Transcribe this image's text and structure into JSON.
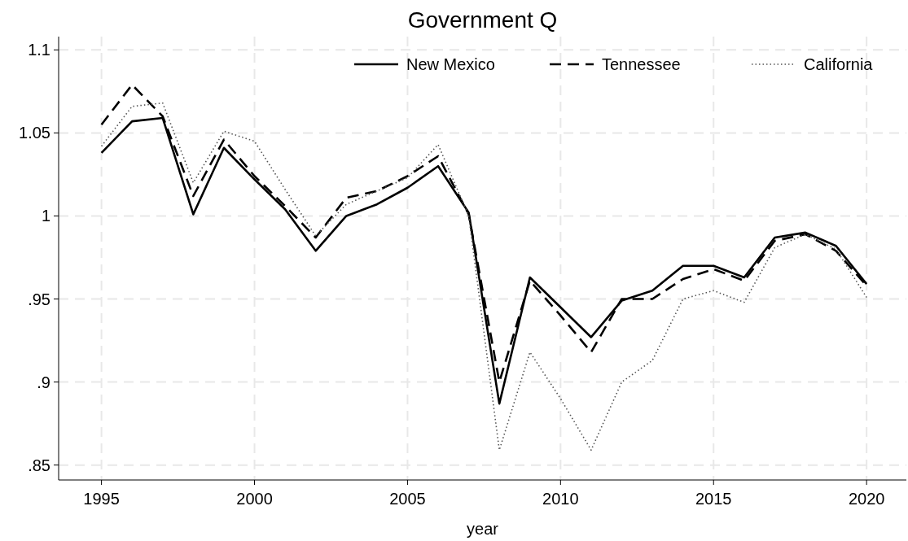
{
  "chart_data": {
    "type": "line",
    "title": "Government Q",
    "xlabel": "year",
    "x": [
      1995,
      1996,
      1997,
      1998,
      1999,
      2000,
      2001,
      2002,
      2003,
      2004,
      2005,
      2006,
      2007,
      2008,
      2009,
      2010,
      2011,
      2012,
      2013,
      2014,
      2015,
      2016,
      2017,
      2018,
      2019,
      2020
    ],
    "series": [
      {
        "name": "New Mexico",
        "color": "#000000",
        "line_style": "solid",
        "values": [
          1.038,
          1.057,
          1.059,
          1.001,
          1.041,
          1.022,
          1.004,
          0.979,
          1.0,
          1.007,
          1.017,
          1.03,
          1.002,
          0.887,
          0.963,
          0.945,
          0.927,
          0.949,
          0.955,
          0.97,
          0.97,
          0.963,
          0.987,
          0.99,
          0.982,
          0.959
        ]
      },
      {
        "name": "Tennessee",
        "color": "#000000",
        "line_style": "dashed",
        "values": [
          1.055,
          1.079,
          1.06,
          1.012,
          1.046,
          1.024,
          1.006,
          0.987,
          1.011,
          1.015,
          1.024,
          1.036,
          1.001,
          0.9,
          0.961,
          0.94,
          0.918,
          0.95,
          0.95,
          0.962,
          0.968,
          0.961,
          0.985,
          0.989,
          0.979,
          0.958
        ]
      },
      {
        "name": "California",
        "color": "#555555",
        "line_style": "dotted",
        "values": [
          1.042,
          1.066,
          1.068,
          1.02,
          1.051,
          1.045,
          1.016,
          0.988,
          1.007,
          1.015,
          1.023,
          1.043,
          1.0,
          0.859,
          0.918,
          0.89,
          0.859,
          0.9,
          0.913,
          0.95,
          0.955,
          0.948,
          0.981,
          0.989,
          0.98,
          0.951
        ]
      }
    ],
    "xlim": [
      1993.6,
      2021.3
    ],
    "xticks": [
      1995,
      2000,
      2005,
      2010,
      2015,
      2020
    ],
    "ylim": [
      0.841,
      1.108
    ],
    "yticks": [
      {
        "value": 0.85,
        "label": ".85"
      },
      {
        "value": 0.9,
        "label": ".9"
      },
      {
        "value": 0.95,
        "label": ".95"
      },
      1,
      1.05,
      1.1
    ],
    "grid": true,
    "legend": "top right"
  }
}
